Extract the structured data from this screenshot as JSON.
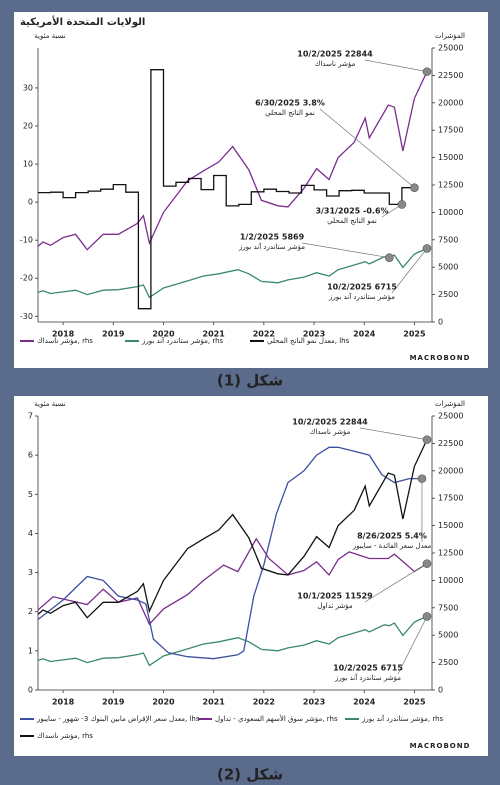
{
  "chart_data": [
    {
      "type": "line",
      "title": "الولايات المتحدة الأمريكية",
      "ylabel": "نسبة مئوية",
      "y2label": "المؤشرات",
      "caption": "شكل (1)",
      "source": "MACROBOND",
      "xlim": [
        2018,
        2025.85
      ],
      "xticks": [
        {
          "value": 2018.5,
          "label": "2018"
        },
        {
          "value": 2019.5,
          "label": "2019"
        },
        {
          "value": 2020.5,
          "label": "2020"
        },
        {
          "value": 2021.5,
          "label": "2021"
        },
        {
          "value": 2022.5,
          "label": "2022"
        },
        {
          "value": 2023.5,
          "label": "2023"
        },
        {
          "value": 2024.5,
          "label": "2024"
        },
        {
          "value": 2025.5,
          "label": "2025"
        }
      ],
      "ylim": [
        -31.5,
        40.5
      ],
      "yticks": [
        -30,
        -20,
        -10,
        0,
        10,
        20,
        30
      ],
      "y2lim": [
        0,
        25000
      ],
      "y2ticks": [
        0,
        2500,
        5000,
        7500,
        10000,
        12500,
        15000,
        17500,
        20000,
        22500,
        25000
      ],
      "series": [
        {
          "name": "مؤشر ناسداك, rhs",
          "color": "#7b2d8e",
          "axis": "y2",
          "x": [
            2018.0,
            2018.1,
            2018.25,
            2018.5,
            2018.75,
            2018.98,
            2019.3,
            2019.6,
            2019.98,
            2020.1,
            2020.22,
            2020.5,
            2020.98,
            2021.3,
            2021.6,
            2021.88,
            2022.2,
            2022.45,
            2022.78,
            2022.98,
            2023.3,
            2023.55,
            2023.8,
            2023.98,
            2024.3,
            2024.52,
            2024.6,
            2024.98,
            2025.1,
            2025.27,
            2025.5,
            2025.75
          ],
          "values": [
            6900,
            7300,
            7000,
            7700,
            8000,
            6600,
            8000,
            8000,
            9000,
            9700,
            7200,
            10000,
            12900,
            13800,
            14600,
            16000,
            13900,
            11100,
            10600,
            10500,
            12200,
            14000,
            13000,
            15000,
            16400,
            18600,
            16800,
            19800,
            19600,
            15600,
            20400,
            22844
          ]
        },
        {
          "name": "مؤشر ستاندرد آند بورز, rhs",
          "color": "#3a8a6a",
          "axis": "y2",
          "x": [
            2018.0,
            2018.1,
            2018.25,
            2018.5,
            2018.75,
            2018.98,
            2019.3,
            2019.6,
            2019.98,
            2020.1,
            2020.22,
            2020.5,
            2020.98,
            2021.3,
            2021.6,
            2021.98,
            2022.2,
            2022.45,
            2022.78,
            2022.98,
            2023.3,
            2023.55,
            2023.8,
            2023.98,
            2024.3,
            2024.52,
            2024.6,
            2024.9,
            2025.0,
            2025.1,
            2025.27,
            2025.5,
            2025.75
          ],
          "values": [
            2700,
            2850,
            2600,
            2750,
            2900,
            2500,
            2900,
            2950,
            3230,
            3380,
            2240,
            3100,
            3750,
            4200,
            4400,
            4770,
            4400,
            3700,
            3580,
            3840,
            4100,
            4500,
            4200,
            4770,
            5200,
            5500,
            5300,
            5950,
            5869,
            6100,
            4980,
            6200,
            6715
          ]
        },
        {
          "name": "معدل نمو الناتج المحلي, lhs",
          "color": "#111111",
          "axis": "y",
          "step": true,
          "x": [
            2018.25,
            2018.5,
            2018.75,
            2019.0,
            2019.25,
            2019.5,
            2019.75,
            2020.0,
            2020.25,
            2020.5,
            2020.75,
            2021.0,
            2021.25,
            2021.5,
            2021.75,
            2022.0,
            2022.25,
            2022.5,
            2022.75,
            2023.0,
            2023.25,
            2023.5,
            2023.75,
            2024.0,
            2024.25,
            2024.5,
            2024.75,
            2025.0,
            2025.25,
            2025.5
          ],
          "values": [
            2.5,
            2.6,
            1.2,
            2.5,
            2.9,
            3.4,
            4.6,
            2.6,
            -28.0,
            34.8,
            4.2,
            5.2,
            6.2,
            3.3,
            7.0,
            -1.0,
            -0.6,
            2.7,
            3.4,
            2.8,
            2.4,
            4.4,
            3.2,
            1.6,
            3.0,
            3.1,
            2.4,
            2.4,
            -0.6,
            3.8
          ]
        }
      ],
      "annotations": [
        {
          "label": "10/2/2025 22844",
          "sublabel": "مؤشر ناسداك",
          "x": 2025.75,
          "y": 22844,
          "axis": "y2"
        },
        {
          "label": "6/30/2025 3.8%",
          "sublabel": "نمو الناتج المحلي",
          "x": 2025.5,
          "y": 3.8,
          "axis": "y"
        },
        {
          "label": "3/31/2025 -0.6%",
          "sublabel": "نمو الناتج المحلي",
          "x": 2025.25,
          "y": -0.6,
          "axis": "y"
        },
        {
          "label": "1/2/2025 5869",
          "sublabel": "مؤشر ستاندرد آند بورز",
          "x": 2025.0,
          "y": 5869,
          "axis": "y2"
        },
        {
          "label": "10/2/2025 6715",
          "sublabel": "مؤشر ستاندرد آند بورز",
          "x": 2025.75,
          "y": 6715,
          "axis": "y2"
        }
      ]
    },
    {
      "type": "line",
      "ylabel": "نسبة مئوية",
      "y2label": "المؤشرات",
      "caption": "شكل (2)",
      "source": "MACROBOND",
      "xlim": [
        2018,
        2025.85
      ],
      "xticks": [
        {
          "value": 2018.5,
          "label": "2018"
        },
        {
          "value": 2019.5,
          "label": "2019"
        },
        {
          "value": 2020.5,
          "label": "2020"
        },
        {
          "value": 2021.5,
          "label": "2021"
        },
        {
          "value": 2022.5,
          "label": "2022"
        },
        {
          "value": 2023.5,
          "label": "2023"
        },
        {
          "value": 2024.5,
          "label": "2024"
        },
        {
          "value": 2025.5,
          "label": "2025"
        }
      ],
      "ylim": [
        0,
        7
      ],
      "yticks": [
        0,
        1,
        2,
        3,
        4,
        5,
        6,
        7
      ],
      "y2lim": [
        0,
        25000
      ],
      "y2ticks": [
        0,
        2500,
        5000,
        7500,
        10000,
        12500,
        15000,
        17500,
        20000,
        22500,
        25000
      ],
      "series": [
        {
          "name": "مؤشر ستاندرد آند بورز, rhs",
          "color": "#3a8a6a",
          "axis": "y2",
          "x": [
            2018.0,
            2018.1,
            2018.25,
            2018.5,
            2018.75,
            2018.98,
            2019.3,
            2019.6,
            2019.98,
            2020.1,
            2020.22,
            2020.5,
            2020.98,
            2021.3,
            2021.6,
            2021.98,
            2022.2,
            2022.45,
            2022.78,
            2022.98,
            2023.3,
            2023.55,
            2023.8,
            2023.98,
            2024.3,
            2024.52,
            2024.6,
            2024.9,
            2025.0,
            2025.1,
            2025.27,
            2025.5,
            2025.75
          ],
          "values": [
            2700,
            2850,
            2600,
            2750,
            2900,
            2500,
            2900,
            2950,
            3230,
            3380,
            2240,
            3100,
            3750,
            4200,
            4400,
            4770,
            4400,
            3700,
            3580,
            3840,
            4100,
            4500,
            4200,
            4770,
            5200,
            5500,
            5300,
            5950,
            5869,
            6100,
            4980,
            6200,
            6715
          ]
        },
        {
          "name": "مؤشر سوق الأسهم السعودي - تداول, rhs",
          "color": "#7b2d8e",
          "axis": "y2",
          "x": [
            2018.0,
            2018.3,
            2018.5,
            2018.98,
            2019.3,
            2019.6,
            2019.98,
            2020.22,
            2020.5,
            2020.98,
            2021.3,
            2021.7,
            2021.98,
            2022.35,
            2022.6,
            2022.98,
            2023.3,
            2023.55,
            2023.8,
            2023.98,
            2024.2,
            2024.6,
            2024.98,
            2025.1,
            2025.5,
            2025.75
          ],
          "values": [
            7300,
            8500,
            8300,
            7800,
            9200,
            8000,
            8400,
            6000,
            7400,
            8700,
            10000,
            11400,
            10800,
            13800,
            12000,
            10500,
            10900,
            11700,
            10500,
            11900,
            12600,
            12000,
            12000,
            12400,
            10800,
            11529
          ]
        },
        {
          "name": "معدل سعر الإقراض مابين البنوك 3- شهور - سايبور, lhs",
          "color": "#3c4fa0",
          "axis": "y",
          "x": [
            2018.0,
            2018.5,
            2018.98,
            2019.3,
            2019.6,
            2019.98,
            2020.15,
            2020.3,
            2020.6,
            2020.98,
            2021.5,
            2021.98,
            2022.1,
            2022.3,
            2022.5,
            2022.75,
            2022.98,
            2023.3,
            2023.55,
            2023.8,
            2023.98,
            2024.3,
            2024.6,
            2024.85,
            2025.1,
            2025.4,
            2025.65
          ],
          "values": [
            1.8,
            2.3,
            2.9,
            2.8,
            2.4,
            2.3,
            2.2,
            1.3,
            0.95,
            0.85,
            0.8,
            0.9,
            1.0,
            2.4,
            3.2,
            4.5,
            5.3,
            5.6,
            6.0,
            6.2,
            6.2,
            6.1,
            6.0,
            5.5,
            5.3,
            5.4,
            5.4
          ]
        },
        {
          "name": "مؤشر ناسداك, rhs",
          "color": "#111111",
          "axis": "y2",
          "x": [
            2018.0,
            2018.1,
            2018.25,
            2018.5,
            2018.75,
            2018.98,
            2019.3,
            2019.6,
            2019.98,
            2020.1,
            2020.22,
            2020.5,
            2020.98,
            2021.3,
            2021.6,
            2021.88,
            2022.2,
            2022.45,
            2022.78,
            2022.98,
            2023.3,
            2023.55,
            2023.8,
            2023.98,
            2024.3,
            2024.52,
            2024.6,
            2024.98,
            2025.1,
            2025.27,
            2025.5,
            2025.75
          ],
          "values": [
            6900,
            7300,
            7000,
            7700,
            8000,
            6600,
            8000,
            8000,
            9000,
            9700,
            7200,
            10000,
            12900,
            13800,
            14600,
            16000,
            13900,
            11100,
            10600,
            10500,
            12200,
            14000,
            13000,
            15000,
            16400,
            18600,
            16800,
            19800,
            19600,
            15600,
            20400,
            22844
          ]
        }
      ],
      "annotations": [
        {
          "label": "10/2/2025 22844",
          "sublabel": "مؤشر ناسداك",
          "x": 2025.75,
          "y": 22844,
          "axis": "y2"
        },
        {
          "label": "8/26/2025 5.4%",
          "sublabel": "معدل سعر الفائدة - سايبور",
          "x": 2025.65,
          "y": 5.4,
          "axis": "y"
        },
        {
          "label": "10/1/2025 11529",
          "sublabel": "مؤشر تداول",
          "x": 2025.75,
          "y": 11529,
          "axis": "y2"
        },
        {
          "label": "10/2/2025 6715",
          "sublabel": "مؤشر ستاندرد آند بورز",
          "x": 2025.75,
          "y": 6715,
          "axis": "y2"
        }
      ]
    }
  ]
}
